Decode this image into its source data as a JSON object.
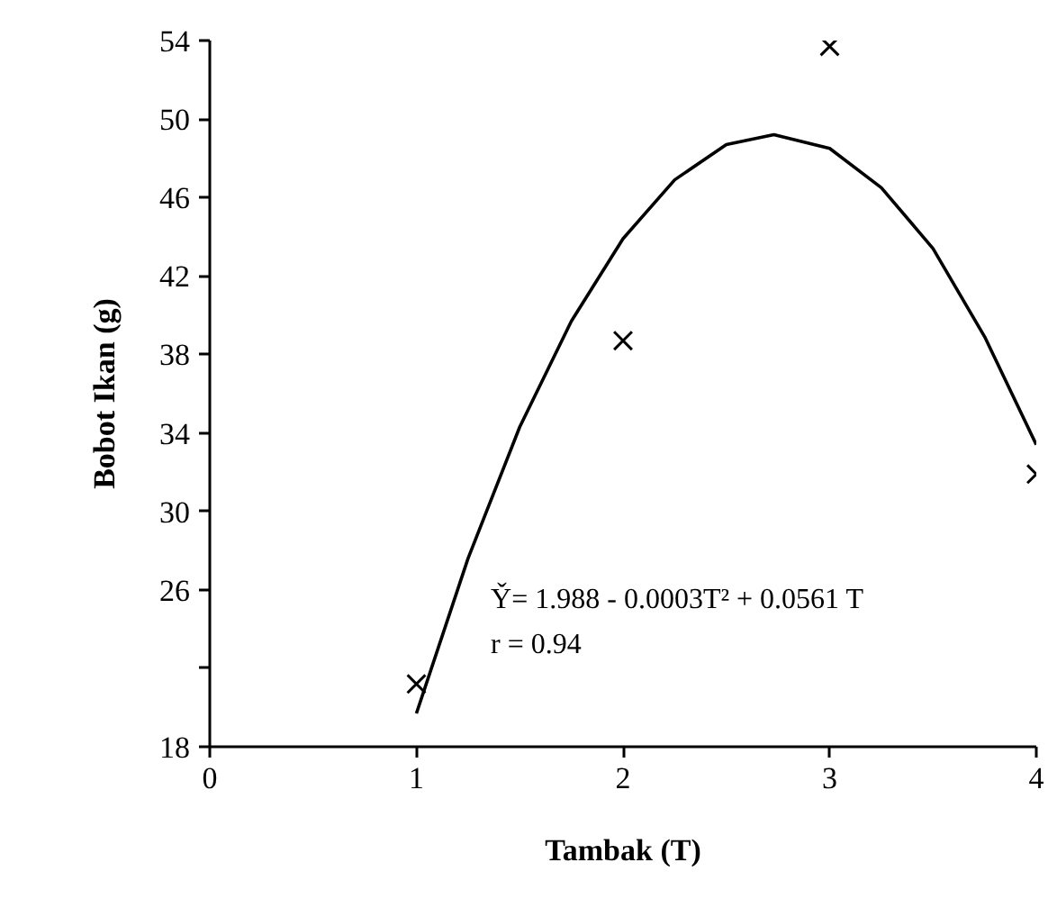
{
  "chart_data": {
    "type": "scatter",
    "xlabel": "Tambak (T)",
    "ylabel": "Bobot Ikan (g)",
    "xlim": [
      0,
      4
    ],
    "xticks": [
      0,
      1,
      2,
      3,
      4
    ],
    "ylim": [
      18,
      54
    ],
    "yticks": [
      18,
      {
        "value": 22,
        "label": null
      },
      26,
      30,
      34,
      38,
      42,
      46,
      50,
      54
    ],
    "grid": false,
    "series": [
      {
        "marker": "cross",
        "color": "#000000",
        "x": [
          1,
          2,
          3,
          4
        ],
        "values": [
          21.2,
          38.7,
          53.7,
          31.9
        ]
      },
      {
        "type": "line",
        "marker": "none",
        "color": "#000000",
        "line_style": "solid",
        "x": [
          1.0,
          1.25,
          1.5,
          1.75,
          2.0,
          2.25,
          2.5,
          2.73,
          3.0,
          3.25,
          3.5,
          3.75,
          4.0
        ],
        "values": [
          19.7,
          27.6,
          34.3,
          39.7,
          43.9,
          46.9,
          48.7,
          49.2,
          48.5,
          46.5,
          43.4,
          38.9,
          33.4
        ]
      }
    ],
    "annotations": [
      "Y̌= 1.988 - 0.0003T² + 0.0561 T",
      "r = 0.94"
    ]
  }
}
